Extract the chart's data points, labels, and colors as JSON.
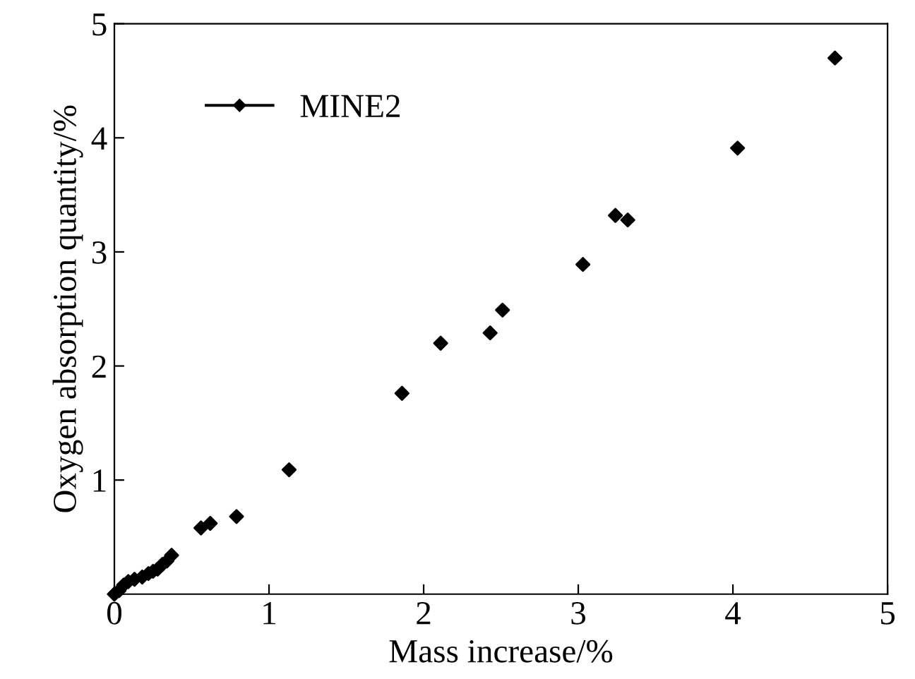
{
  "chart_data": {
    "type": "scatter",
    "xlabel": "Mass increase/%",
    "ylabel": "Oxygen absorption quantity/%",
    "series": [
      {
        "name": "MINE2",
        "color": "#000000",
        "x": [
          0.0,
          0.03,
          0.06,
          0.09,
          0.13,
          0.18,
          0.22,
          0.25,
          0.28,
          0.31,
          0.34,
          0.37,
          0.56,
          0.62,
          0.79,
          1.13,
          1.86,
          2.11,
          2.43,
          2.51,
          3.03,
          3.24,
          3.32,
          4.03,
          4.66
        ],
        "values": [
          0.0,
          0.03,
          0.08,
          0.11,
          0.13,
          0.15,
          0.18,
          0.2,
          0.22,
          0.26,
          0.29,
          0.34,
          0.58,
          0.62,
          0.68,
          1.09,
          1.76,
          2.2,
          2.29,
          2.49,
          2.89,
          3.32,
          3.28,
          3.91,
          4.7
        ]
      }
    ],
    "xlim": [
      0,
      5
    ],
    "ylim": [
      0,
      5
    ],
    "xticks": [
      0,
      1,
      2,
      3,
      4,
      5
    ],
    "yticks": [
      {
        "value": 0,
        "label": null
      },
      1,
      2,
      3,
      4,
      5
    ],
    "marker": "diamond",
    "legend": "top left",
    "grid": false
  }
}
